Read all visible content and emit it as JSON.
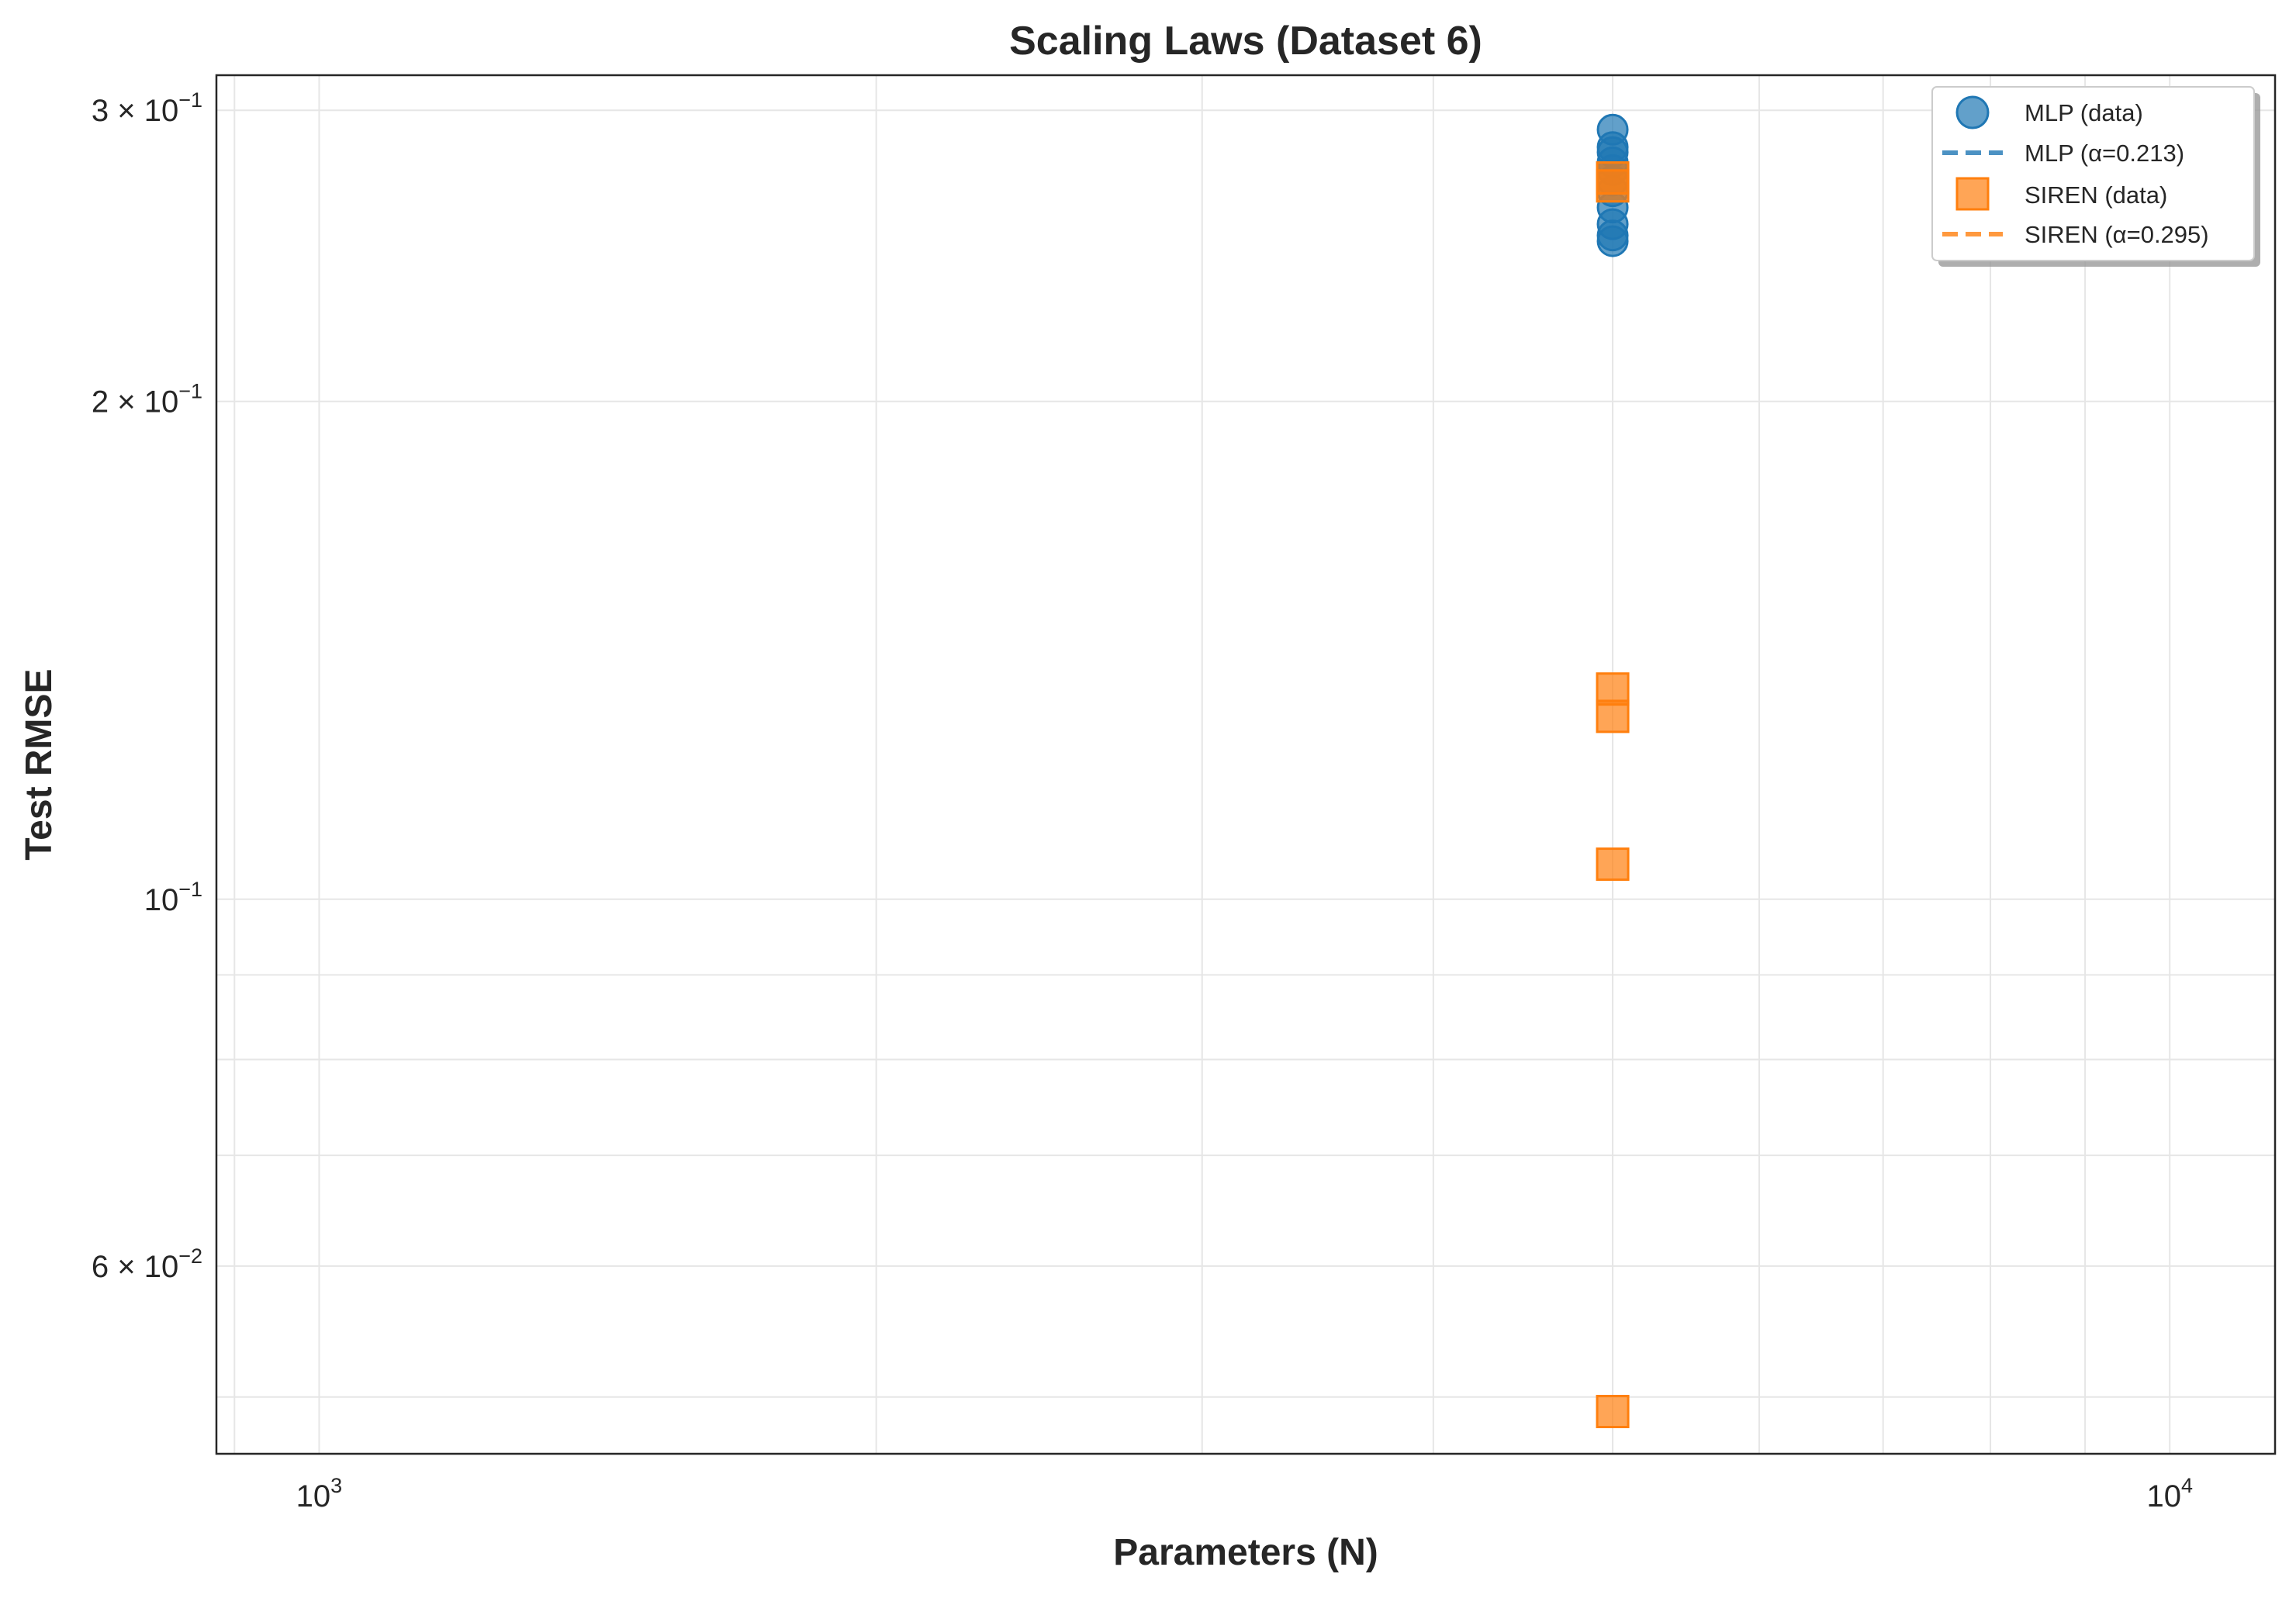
{
  "chart_data": {
    "type": "scatter",
    "title": "Scaling Laws (Dataset 6)",
    "xlabel": "Parameters (N)",
    "ylabel": "Test RMSE",
    "xscale": "log",
    "yscale": "log",
    "xlim": [
      880,
      11400
    ],
    "ylim": [
      0.0462,
      0.315
    ],
    "grid": true,
    "legend_position": "top-right",
    "x_ticks": [
      {
        "value": 1000,
        "base": "10",
        "exp": "3"
      },
      {
        "value": 10000,
        "base": "10",
        "exp": "4"
      }
    ],
    "y_ticks": [
      {
        "value": 0.3,
        "base": "3 × 10",
        "exp": "−1"
      },
      {
        "value": 0.2,
        "base": "2 × 10",
        "exp": "−1"
      },
      {
        "value": 0.1,
        "base": "10",
        "exp": "−1"
      },
      {
        "value": 0.06,
        "base": "6 × 10",
        "exp": "−2"
      }
    ],
    "series": [
      {
        "name": "MLP (data)",
        "marker": "circle",
        "color": "#1f77b4",
        "points": [
          {
            "x": 5000,
            "y": 0.292
          },
          {
            "x": 5000,
            "y": 0.285
          },
          {
            "x": 5000,
            "y": 0.283
          },
          {
            "x": 5000,
            "y": 0.279
          },
          {
            "x": 5000,
            "y": 0.276
          },
          {
            "x": 5000,
            "y": 0.272
          },
          {
            "x": 5000,
            "y": 0.268
          },
          {
            "x": 5000,
            "y": 0.262
          },
          {
            "x": 5000,
            "y": 0.256
          },
          {
            "x": 5000,
            "y": 0.252
          },
          {
            "x": 5000,
            "y": 0.25
          }
        ]
      },
      {
        "name": "SIREN (data)",
        "marker": "square",
        "color": "#ff7f0e",
        "points": [
          {
            "x": 5000,
            "y": 0.273
          },
          {
            "x": 5000,
            "y": 0.27
          },
          {
            "x": 5000,
            "y": 0.134
          },
          {
            "x": 5000,
            "y": 0.129
          },
          {
            "x": 5000,
            "y": 0.105
          },
          {
            "x": 5000,
            "y": 0.049
          }
        ]
      }
    ],
    "fits": [
      {
        "name": "MLP (α=0.213)",
        "alpha": 0.213,
        "color": "#1f77b4",
        "style": "dashed"
      },
      {
        "name": "SIREN (α=0.295)",
        "alpha": 0.295,
        "color": "#ff7f0e",
        "style": "dashed"
      }
    ]
  }
}
